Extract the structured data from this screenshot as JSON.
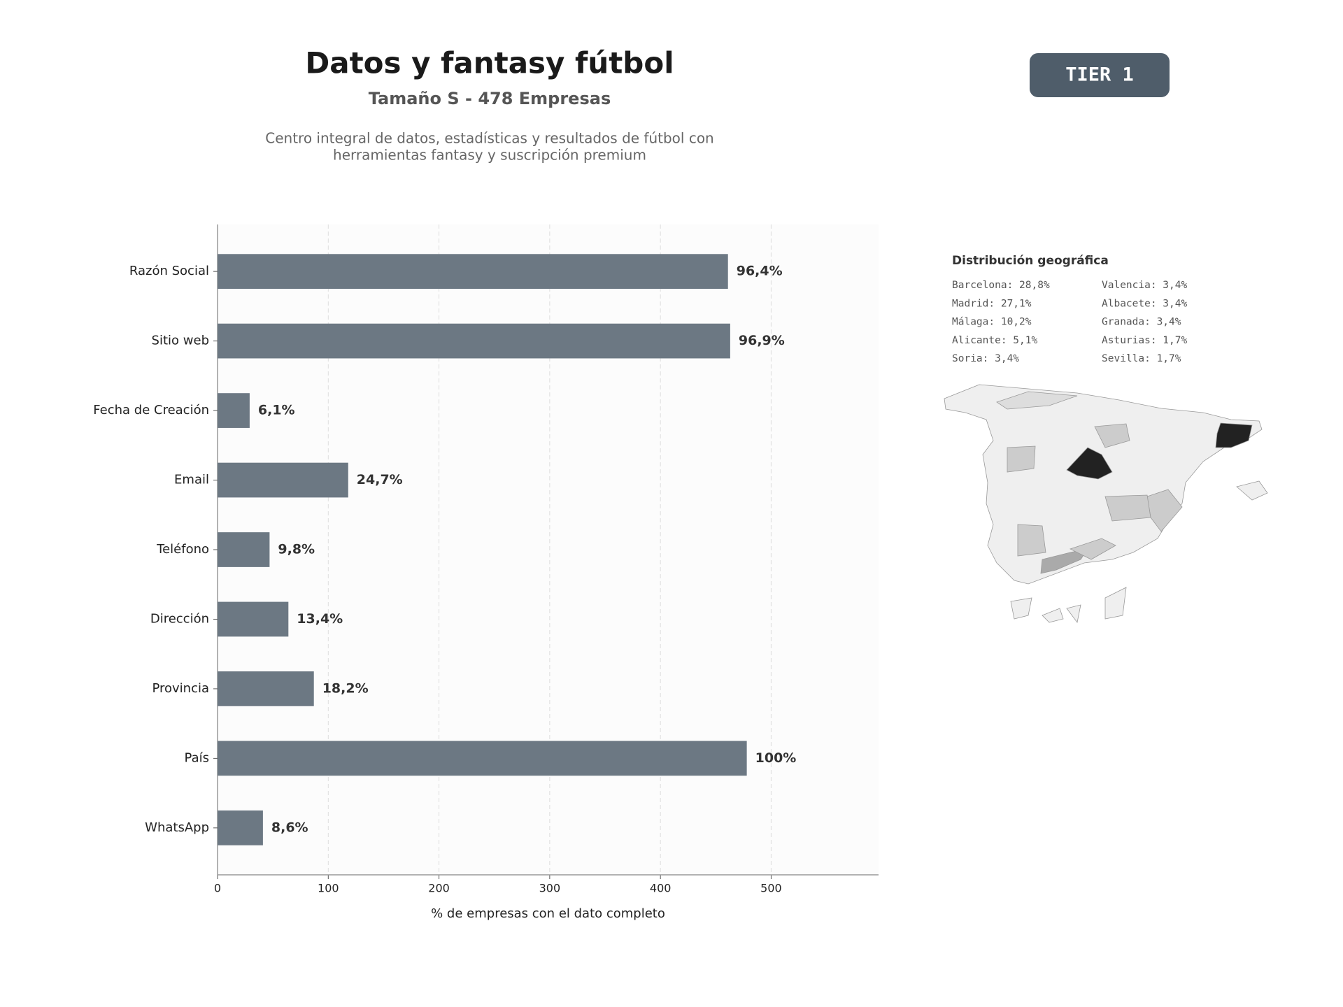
{
  "chart_data": {
    "type": "barh",
    "title": "Datos y fantasy fútbol",
    "subtitle": "Tamaño S - 478 Empresas",
    "description": [
      "Centro integral de datos, estadísticas y resultados de fútbol con",
      "herramientas fantasy y suscripción premium"
    ],
    "xlabel": "% de empresas con el dato completo",
    "categories": [
      "Razón Social",
      "Sitio web",
      "Fecha de Creación",
      "Email",
      "Teléfono",
      "Dirección",
      "Provincia",
      "País",
      "WhatsApp"
    ],
    "values": [
      461,
      463,
      29,
      118,
      47,
      64,
      87,
      478,
      41
    ],
    "value_labels": [
      "96,4%",
      "96,9%",
      "6,1%",
      "24,7%",
      "9,8%",
      "13,4%",
      "18,2%",
      "100%",
      "8,6%"
    ],
    "color": "#6c7883",
    "xlim": [
      0,
      597
    ],
    "xticks": [
      0,
      100,
      200,
      300,
      400,
      500
    ],
    "grid": true
  },
  "badge": "TIER 1",
  "geo": {
    "title": "Distribución geográfica",
    "items": [
      "Barcelona: 28,8%",
      "Valencia: 3,4%",
      "Madrid: 27,1%",
      "Albacete: 3,4%",
      "Málaga: 10,2%",
      "Granada: 3,4%",
      "Alicante: 5,1%",
      "Asturias: 1,7%",
      "Soria: 3,4%",
      "Sevilla: 1,7%"
    ]
  }
}
